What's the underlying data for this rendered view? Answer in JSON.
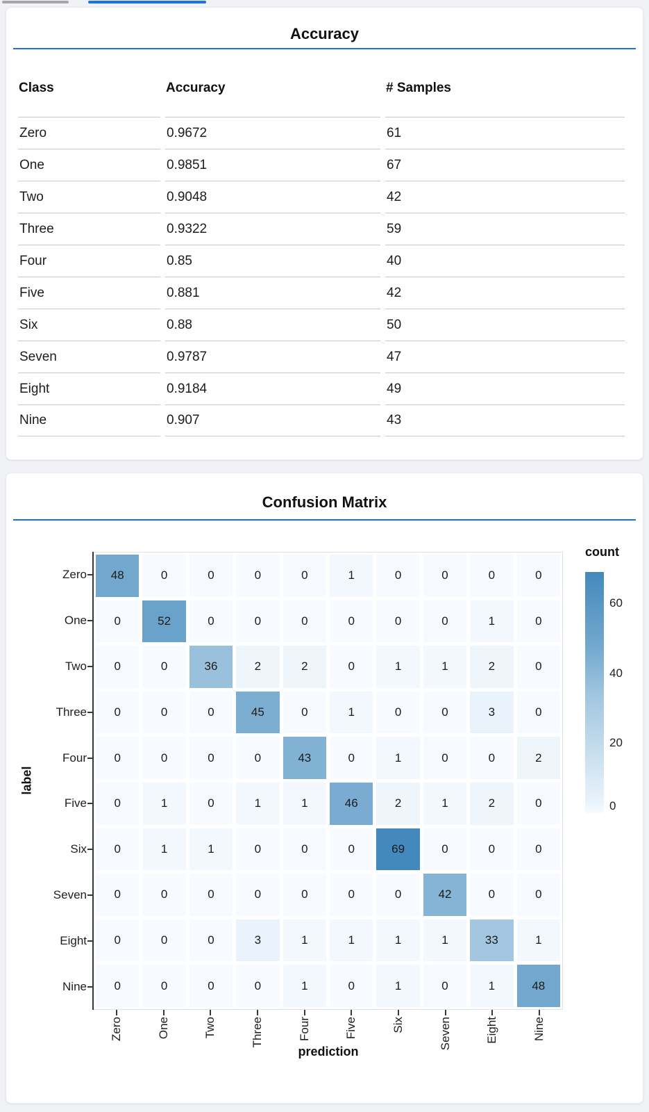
{
  "page": {
    "background": "#f1f2f5",
    "accent_blue": "#1b6fe0",
    "tab_indicators": {
      "gray_color": "#a6a6a6",
      "blue_color": "#1a73e8"
    }
  },
  "accuracy_card": {
    "title": "Accuracy",
    "table": {
      "columns": [
        "Class",
        "Accuracy",
        "# Samples"
      ],
      "rows": [
        {
          "class": "Zero",
          "accuracy": "0.9672",
          "samples": "61"
        },
        {
          "class": "One",
          "accuracy": "0.9851",
          "samples": "67"
        },
        {
          "class": "Two",
          "accuracy": "0.9048",
          "samples": "42"
        },
        {
          "class": "Three",
          "accuracy": "0.9322",
          "samples": "59"
        },
        {
          "class": "Four",
          "accuracy": "0.85",
          "samples": "40"
        },
        {
          "class": "Five",
          "accuracy": "0.881",
          "samples": "42"
        },
        {
          "class": "Six",
          "accuracy": "0.88",
          "samples": "50"
        },
        {
          "class": "Seven",
          "accuracy": "0.9787",
          "samples": "47"
        },
        {
          "class": "Eight",
          "accuracy": "0.9184",
          "samples": "49"
        },
        {
          "class": "Nine",
          "accuracy": "0.907",
          "samples": "43"
        }
      ]
    }
  },
  "confusion_card": {
    "title": "Confusion Matrix"
  },
  "chart_data": {
    "type": "heatmap",
    "title": "Confusion Matrix",
    "xlabel": "prediction",
    "ylabel": "label",
    "x_categories": [
      "Zero",
      "One",
      "Two",
      "Three",
      "Four",
      "Five",
      "Six",
      "Seven",
      "Eight",
      "Nine"
    ],
    "y_categories": [
      "Zero",
      "One",
      "Two",
      "Three",
      "Four",
      "Five",
      "Six",
      "Seven",
      "Eight",
      "Nine"
    ],
    "values": [
      [
        48,
        0,
        0,
        0,
        0,
        1,
        0,
        0,
        0,
        0
      ],
      [
        0,
        52,
        0,
        0,
        0,
        0,
        0,
        0,
        1,
        0
      ],
      [
        0,
        0,
        36,
        2,
        2,
        0,
        1,
        1,
        2,
        0
      ],
      [
        0,
        0,
        0,
        45,
        0,
        1,
        0,
        0,
        3,
        0
      ],
      [
        0,
        0,
        0,
        0,
        43,
        0,
        1,
        0,
        0,
        2
      ],
      [
        0,
        1,
        0,
        1,
        1,
        46,
        2,
        1,
        2,
        0
      ],
      [
        0,
        1,
        1,
        0,
        0,
        0,
        69,
        0,
        0,
        0
      ],
      [
        0,
        0,
        0,
        0,
        0,
        0,
        0,
        42,
        0,
        0
      ],
      [
        0,
        0,
        0,
        3,
        1,
        1,
        1,
        1,
        33,
        1
      ],
      [
        0,
        0,
        0,
        0,
        1,
        0,
        1,
        0,
        1,
        48
      ]
    ],
    "legend": {
      "title": "count",
      "ticks": [
        60,
        40,
        20,
        0
      ],
      "domain": [
        0,
        69
      ]
    },
    "colormap_stops": [
      {
        "value": 0,
        "color": "#f7fbff"
      },
      {
        "value": 3,
        "color": "#eaf3fb"
      },
      {
        "value": 33,
        "color": "#a3c7e0"
      },
      {
        "value": 48,
        "color": "#72a8cd"
      },
      {
        "value": 69,
        "color": "#4489bd"
      }
    ],
    "grid": false,
    "legend_position": "right"
  }
}
